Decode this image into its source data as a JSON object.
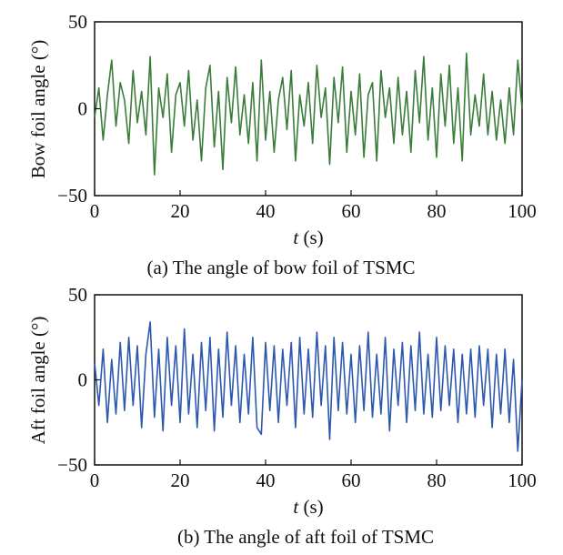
{
  "chart_data": [
    {
      "type": "line",
      "caption": "(a) The angle of bow foil of TSMC",
      "xlabel_var": "t",
      "xlabel_unit": " (s)",
      "ylabel": "Bow foil angle (°)",
      "xlim": [
        0,
        100
      ],
      "ylim": [
        -50,
        50
      ],
      "xticks": [
        0,
        20,
        40,
        60,
        80,
        100
      ],
      "yticks": [
        -50,
        0,
        50
      ],
      "grid": false,
      "series": [
        {
          "color": "#3a7d3a",
          "x": [
            0,
            1,
            2,
            3,
            4,
            5,
            6,
            7,
            8,
            9,
            10,
            11,
            12,
            13,
            14,
            15,
            16,
            17,
            18,
            19,
            20,
            21,
            22,
            23,
            24,
            25,
            26,
            27,
            28,
            29,
            30,
            31,
            32,
            33,
            34,
            35,
            36,
            37,
            38,
            39,
            40,
            41,
            42,
            43,
            44,
            45,
            46,
            47,
            48,
            49,
            50,
            51,
            52,
            53,
            54,
            55,
            56,
            57,
            58,
            59,
            60,
            61,
            62,
            63,
            64,
            65,
            66,
            67,
            68,
            69,
            70,
            71,
            72,
            73,
            74,
            75,
            76,
            77,
            78,
            79,
            80,
            81,
            82,
            83,
            84,
            85,
            86,
            87,
            88,
            89,
            90,
            91,
            92,
            93,
            94,
            95,
            96,
            97,
            98,
            99,
            100
          ],
          "values": [
            -5,
            12,
            -18,
            8,
            28,
            -10,
            15,
            5,
            -20,
            22,
            -8,
            10,
            -15,
            30,
            -38,
            12,
            -5,
            20,
            -25,
            8,
            15,
            -10,
            22,
            -18,
            5,
            -30,
            12,
            25,
            -22,
            10,
            -35,
            18,
            -8,
            24,
            -15,
            8,
            -20,
            15,
            -30,
            28,
            -18,
            10,
            -25,
            5,
            18,
            -12,
            22,
            -30,
            8,
            -10,
            15,
            -20,
            25,
            -5,
            12,
            -32,
            18,
            -8,
            24,
            -25,
            10,
            -15,
            20,
            -28,
            8,
            15,
            -30,
            22,
            -5,
            12,
            -20,
            18,
            -15,
            10,
            -25,
            22,
            -8,
            30,
            -18,
            12,
            -28,
            20,
            -10,
            25,
            -20,
            12,
            -30,
            32,
            -15,
            8,
            -10,
            20,
            -15,
            10,
            -18,
            5,
            -20,
            12,
            -15,
            28,
            0
          ]
        }
      ]
    },
    {
      "type": "line",
      "caption": "(b) The angle of aft foil of TSMC",
      "xlabel_var": "t",
      "xlabel_unit": " (s)",
      "ylabel": "Aft foil angle (°)",
      "xlim": [
        0,
        100
      ],
      "ylim": [
        -50,
        50
      ],
      "xticks": [
        0,
        20,
        40,
        60,
        80,
        100
      ],
      "yticks": [
        -50,
        0,
        50
      ],
      "grid": false,
      "series": [
        {
          "color": "#2d58b0",
          "x": [
            0,
            1,
            2,
            3,
            4,
            5,
            6,
            7,
            8,
            9,
            10,
            11,
            12,
            13,
            14,
            15,
            16,
            17,
            18,
            19,
            20,
            21,
            22,
            23,
            24,
            25,
            26,
            27,
            28,
            29,
            30,
            31,
            32,
            33,
            34,
            35,
            36,
            37,
            38,
            39,
            40,
            41,
            42,
            43,
            44,
            45,
            46,
            47,
            48,
            49,
            50,
            51,
            52,
            53,
            54,
            55,
            56,
            57,
            58,
            59,
            60,
            61,
            62,
            63,
            64,
            65,
            66,
            67,
            68,
            69,
            70,
            71,
            72,
            73,
            74,
            75,
            76,
            77,
            78,
            79,
            80,
            81,
            82,
            83,
            84,
            85,
            86,
            87,
            88,
            89,
            90,
            91,
            92,
            93,
            94,
            95,
            96,
            97,
            98,
            99,
            100
          ],
          "values": [
            10,
            -15,
            18,
            -25,
            12,
            -20,
            22,
            -18,
            25,
            -15,
            20,
            -28,
            15,
            34,
            -22,
            18,
            -30,
            25,
            -15,
            20,
            -25,
            30,
            -20,
            15,
            -28,
            22,
            -18,
            25,
            -30,
            18,
            -22,
            28,
            -15,
            20,
            -25,
            15,
            -20,
            25,
            -28,
            -32,
            22,
            -18,
            20,
            -25,
            18,
            -15,
            22,
            -28,
            25,
            -20,
            18,
            -22,
            28,
            -15,
            20,
            -35,
            25,
            -18,
            22,
            -20,
            15,
            -25,
            20,
            -18,
            28,
            -22,
            15,
            -20,
            25,
            -30,
            18,
            -15,
            22,
            -25,
            20,
            -18,
            28,
            -20,
            15,
            -22,
            25,
            -18,
            20,
            -15,
            18,
            -25,
            15,
            -20,
            18,
            -22,
            20,
            -15,
            18,
            -28,
            15,
            -20,
            18,
            -25,
            12,
            -42,
            0
          ]
        }
      ]
    }
  ]
}
